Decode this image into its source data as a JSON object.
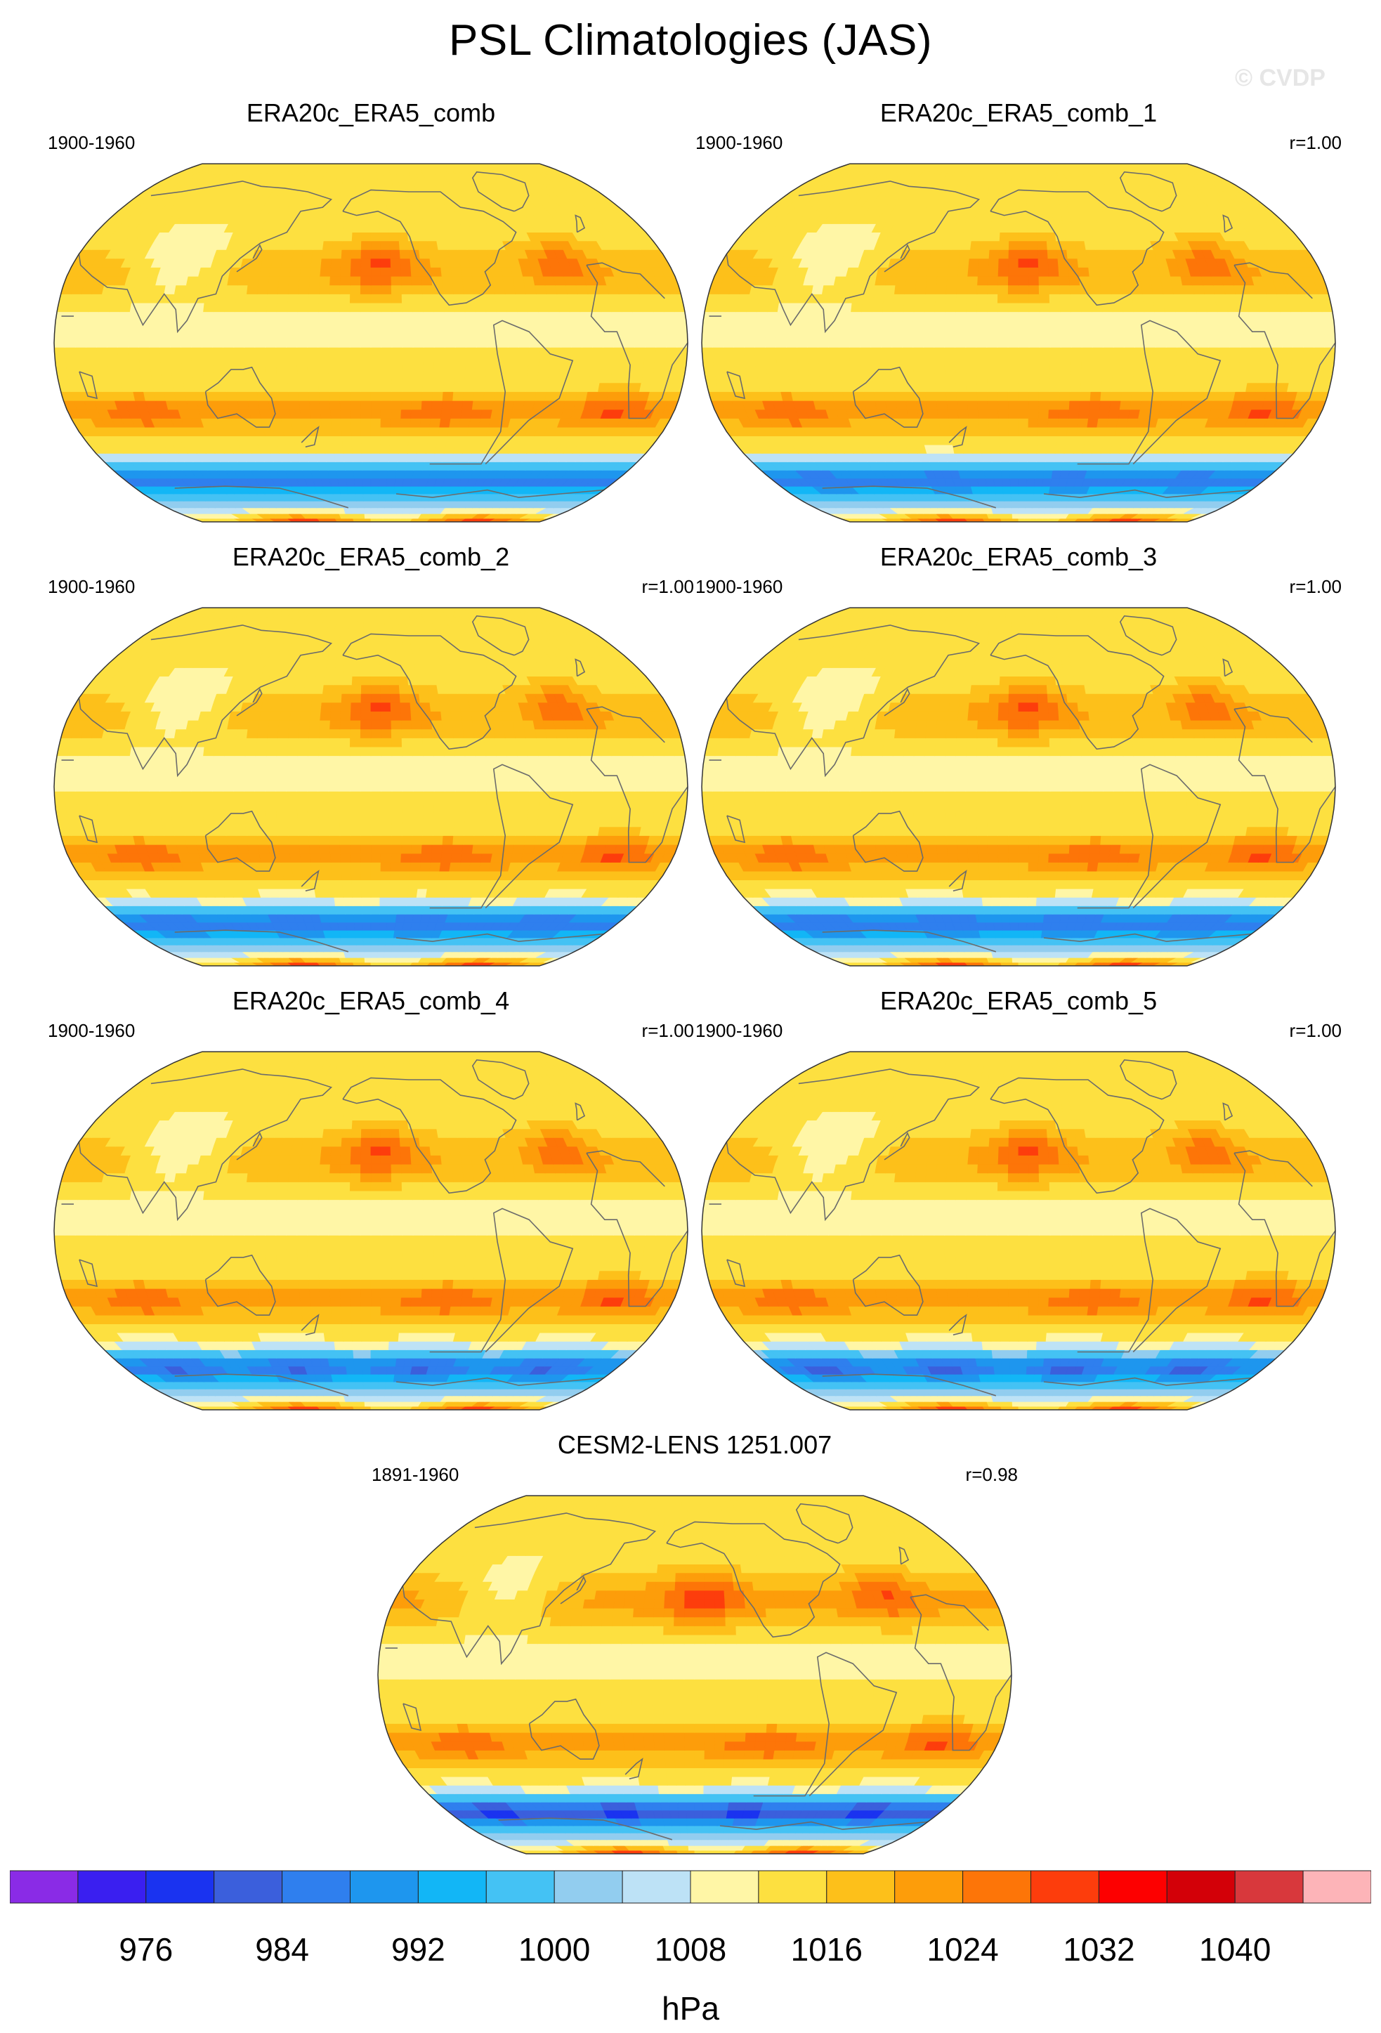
{
  "title": "PSL Climatologies (JAS)",
  "watermark": "© CVDP",
  "chart_data": {
    "type": "heatmap",
    "projection": "Robinson, Pacific-centered global map",
    "variable": "PSL",
    "season": "JAS",
    "units": "hPa",
    "panels": [
      {
        "title": "ERA20c_ERA5_comb",
        "period": "1900-1960",
        "pattern_correlation": ""
      },
      {
        "title": "ERA20c_ERA5_comb_1",
        "period": "1900-1960",
        "pattern_correlation": "r=1.00"
      },
      {
        "title": "ERA20c_ERA5_comb_2",
        "period": "1900-1960",
        "pattern_correlation": "r=1.00"
      },
      {
        "title": "ERA20c_ERA5_comb_3",
        "period": "1900-1960",
        "pattern_correlation": "r=1.00"
      },
      {
        "title": "ERA20c_ERA5_comb_4",
        "period": "1900-1960",
        "pattern_correlation": "r=1.00"
      },
      {
        "title": "ERA20c_ERA5_comb_5",
        "period": "1900-1960",
        "pattern_correlation": "r=1.00"
      },
      {
        "title": "CESM2-LENS 1251.007",
        "period": "1891-1960",
        "pattern_correlation": "r=0.98"
      }
    ],
    "colorbar": {
      "levels": [
        972,
        976,
        980,
        984,
        988,
        992,
        996,
        1000,
        1004,
        1008,
        1012,
        1016,
        1020,
        1024,
        1028,
        1032,
        1036,
        1040,
        1044
      ],
      "tick_labels": [
        "976",
        "984",
        "992",
        "1000",
        "1008",
        "1016",
        "1024",
        "1032",
        "1040"
      ],
      "colors": [
        "#8a2be6",
        "#3a1ff0",
        "#1a33f0",
        "#3b5fdc",
        "#2f7fee",
        "#1e96ee",
        "#12b6f6",
        "#44c2f4",
        "#92cdef",
        "#bde2f6",
        "#fff6a6",
        "#fde040",
        "#fdc01a",
        "#fd9d0a",
        "#fd7508",
        "#fd3d0c",
        "#fd0000",
        "#d30008",
        "#d8383c",
        "#fdb4b8"
      ]
    },
    "fields": {
      "ERA20c_ERA5_comb": [
        {
          "level": 1020,
          "lon": 215,
          "lat": 36,
          "size": 1.0
        },
        {
          "level": 1020,
          "lon": 325,
          "lat": 36,
          "size": 0.9
        },
        {
          "level": 1020,
          "lon": 75,
          "lat": -33,
          "size": 1.0
        },
        {
          "level": 1020,
          "lon": 255,
          "lat": -32,
          "size": 0.9
        },
        {
          "level": 1020,
          "lon": 355,
          "lat": -30,
          "size": 0.9
        },
        {
          "level": 1004,
          "lon": 90,
          "lat": 38,
          "size": 1.0
        },
        {
          "level": 992,
          "lon": 150,
          "lat": -64,
          "size": 1.0
        }
      ]
    }
  },
  "units_label": "hPa"
}
